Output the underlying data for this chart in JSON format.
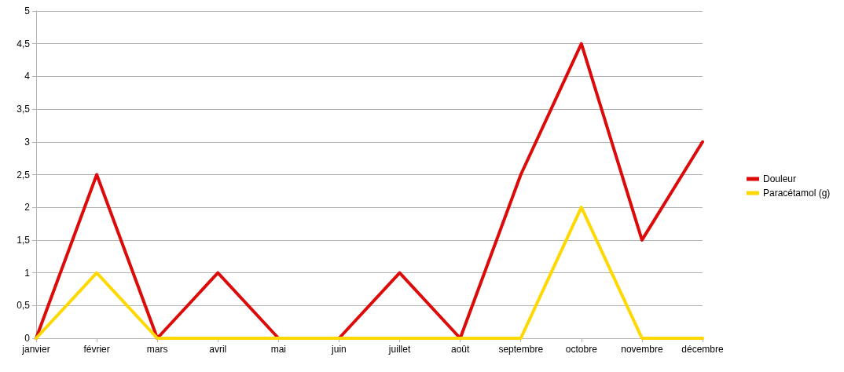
{
  "chart_data": {
    "type": "line",
    "categories": [
      "janvier",
      "février",
      "mars",
      "avril",
      "mai",
      "juin",
      "juillet",
      "août",
      "septembre",
      "octobre",
      "novembre",
      "décembre"
    ],
    "series": [
      {
        "name": "Douleur",
        "color": "#dd0a0a",
        "values": [
          0,
          2.5,
          0,
          1,
          0,
          0,
          1,
          0,
          2.5,
          4.5,
          1.5,
          3
        ]
      },
      {
        "name": "Paracétamol (g)",
        "color": "#ffd800",
        "values": [
          0,
          1,
          0,
          0,
          0,
          0,
          0,
          0,
          0,
          2,
          0,
          0
        ]
      }
    ],
    "ylim": [
      0,
      5
    ],
    "yticks": [
      0,
      {
        "value": 0.5,
        "label": "0,5"
      },
      1,
      {
        "value": 1.5,
        "label": "1,5"
      },
      2,
      {
        "value": 2.5,
        "label": "2,5"
      },
      3,
      {
        "value": 3.5,
        "label": "3,5"
      },
      4,
      {
        "value": 4.5,
        "label": "4,5"
      },
      5
    ],
    "grid": "y",
    "legend": "right",
    "marker": "none",
    "line_style": "solid"
  }
}
